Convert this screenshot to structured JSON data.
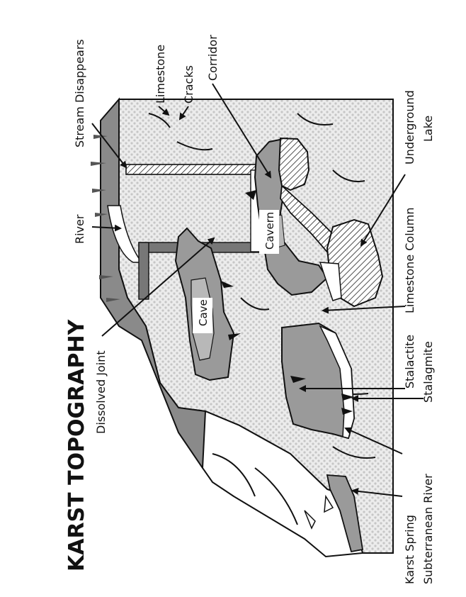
{
  "title": "KARST TOPOGRAPHY",
  "colors": {
    "limestone_fill": "#e4e4e4",
    "rock_dark": "#8a8a8a",
    "rock_mid": "#b4b4b4",
    "outline": "#111111",
    "cavity": "#ffffff"
  },
  "labels": {
    "stream_disappears": "Stream Disappears",
    "limestone": "Limestone",
    "cracks": "Cracks",
    "corridor": "Corridor",
    "underground_lake_1": "Underground",
    "underground_lake_2": "Lake",
    "river": "River",
    "limestone_column": "Limestone Column",
    "stalactite": "Stalactite",
    "stalagmite": "Stalagmite",
    "dissolved_joint": "Dissolved Joint",
    "subterranean_river": "Subterranean River",
    "karst_spring": "Karst Spring",
    "cave": "Cave",
    "cavern": "Cavern"
  }
}
